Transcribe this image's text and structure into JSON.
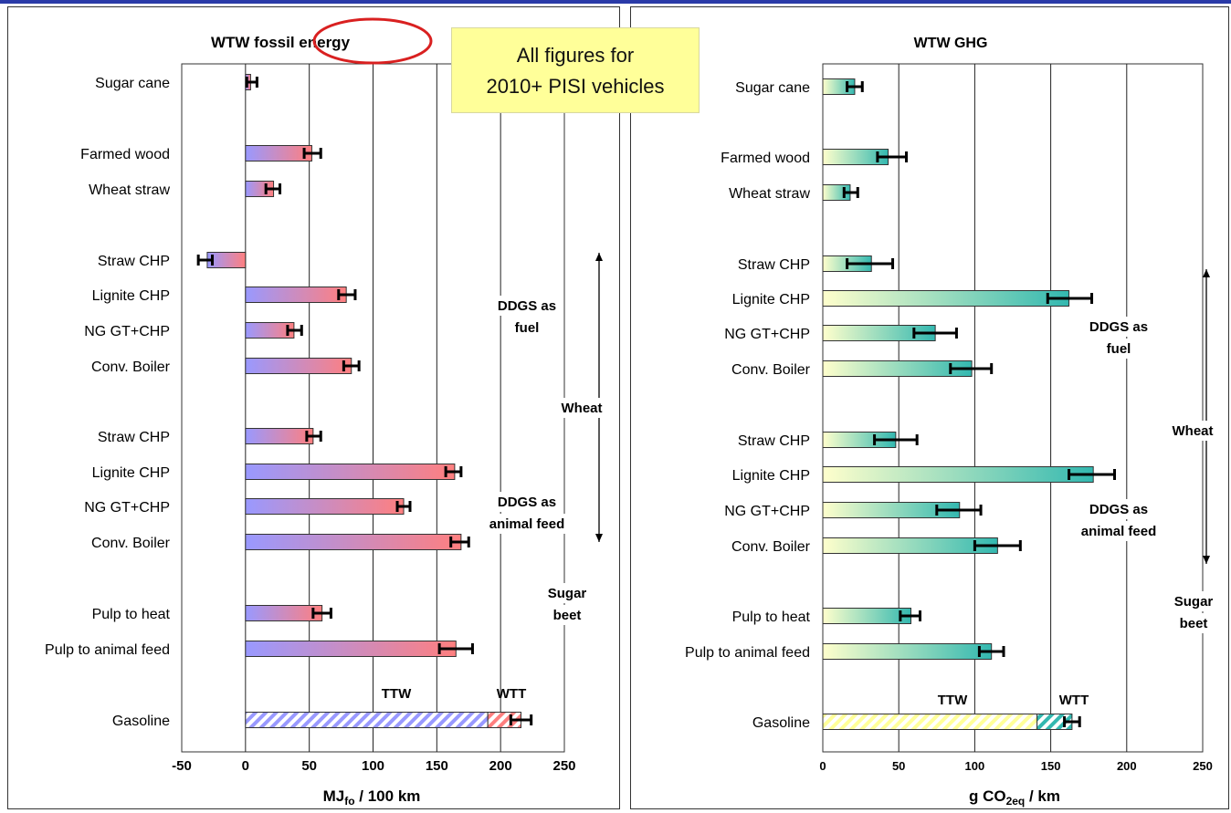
{
  "note": {
    "line1": "All figures for",
    "line2": "2010+ PISI vehicles"
  },
  "labels": {
    "ddgs_fuel": [
      "DDGS as",
      "fuel"
    ],
    "ddgs_feed": [
      "DDGS as",
      "animal feed"
    ],
    "wheat": "Wheat",
    "sugar_beet": [
      "Sugar",
      "beet"
    ],
    "ttw": "TTW",
    "wtt": "WTT"
  },
  "colors": {
    "left_bar_start": "#9999ff",
    "left_bar_end": "#ff7f7f",
    "right_bar_start": "#ffffcc",
    "right_bar_end": "#33b8b0",
    "highlight_ellipse": "#d92020",
    "note_bg": "#ffff99"
  },
  "chart_data": [
    {
      "type": "bar",
      "orientation": "horizontal",
      "title": "WTW fossil energy",
      "xlabel": "MJfo / 100 km",
      "xlabel_main": "MJ",
      "xlabel_sub": "fo",
      "xlabel_tail": " / 100 km",
      "xlim": [
        -50,
        250
      ],
      "xticks": [
        -50,
        0,
        50,
        100,
        150,
        200,
        250
      ],
      "grid": "vertical",
      "categories": [
        "Sugar cane",
        "Farmed wood",
        "Wheat straw",
        "Straw CHP",
        "Lignite CHP",
        "NG GT+CHP",
        "Conv. Boiler",
        "Straw CHP",
        "Lignite CHP",
        "NG GT+CHP",
        "Conv. Boiler",
        "Pulp to heat",
        "Pulp to animal feed"
      ],
      "values": [
        4,
        52,
        22,
        -30,
        79,
        38,
        83,
        53,
        164,
        124,
        169,
        60,
        165
      ],
      "error_low": [
        1,
        46,
        16,
        -37,
        73,
        33,
        77,
        48,
        157,
        119,
        161,
        53,
        152
      ],
      "error_high": [
        9,
        59,
        27,
        -26,
        86,
        44,
        89,
        59,
        169,
        129,
        175,
        67,
        178
      ],
      "gasoline": {
        "label": "Gasoline",
        "ttw": 190,
        "wtt": 26,
        "total": 216,
        "error_low": 208,
        "error_high": 224
      }
    },
    {
      "type": "bar",
      "orientation": "horizontal",
      "title": "WTW GHG",
      "xlabel": "g CO2eq / km",
      "xlabel_main": "g CO",
      "xlabel_sub": "2eq",
      "xlabel_tail": " /  km",
      "xlim": [
        0,
        250
      ],
      "xticks": [
        0,
        50,
        100,
        150,
        200,
        250
      ],
      "grid": "vertical",
      "categories": [
        "Sugar cane",
        "Farmed wood",
        "Wheat straw",
        "Straw CHP",
        "Lignite CHP",
        "NG GT+CHP",
        "Conv. Boiler",
        "Straw CHP",
        "Lignite CHP",
        "NG GT+CHP",
        "Conv. Boiler",
        "Pulp to heat",
        "Pulp to animal feed"
      ],
      "values": [
        21,
        43,
        18,
        32,
        162,
        74,
        98,
        48,
        178,
        90,
        115,
        58,
        111
      ],
      "error_low": [
        16,
        36,
        14,
        16,
        148,
        60,
        84,
        34,
        162,
        75,
        100,
        51,
        103
      ],
      "error_high": [
        26,
        55,
        23,
        46,
        177,
        88,
        111,
        62,
        192,
        104,
        130,
        64,
        119
      ],
      "gasoline": {
        "label": "Gasoline",
        "ttw": 141,
        "wtt": 23,
        "total": 164,
        "error_low": 159,
        "error_high": 169
      }
    }
  ]
}
